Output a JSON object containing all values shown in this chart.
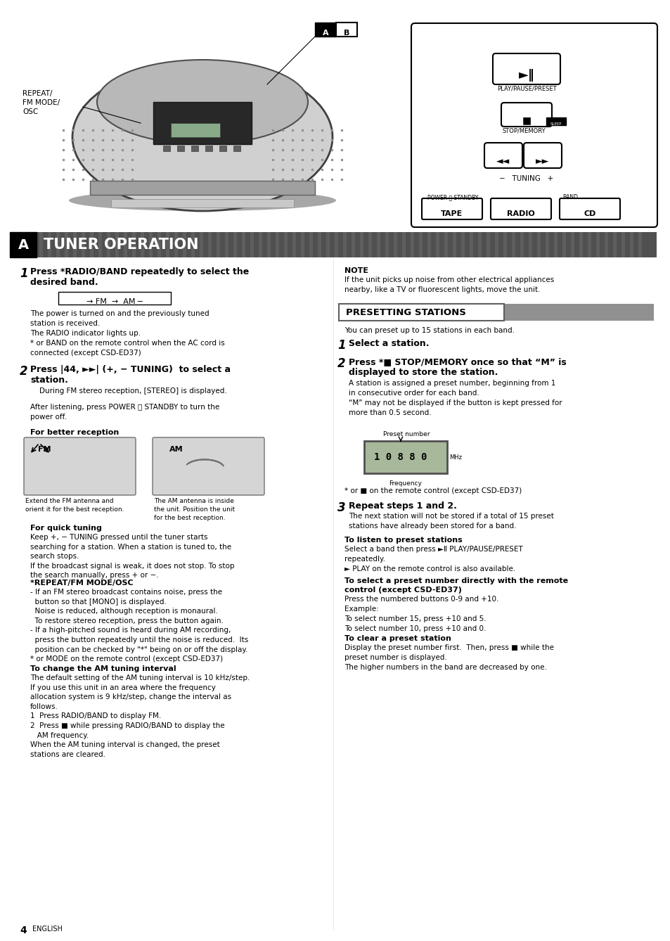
{
  "bg_color": "#ffffff",
  "page_width": 9.54,
  "page_height": 13.38,
  "dpi": 100,
  "step1_body": "The power is turned on and the previously tuned\nstation is received.\nThe RADIO indicator lights up.\n* or BAND on the remote control when the AC cord is\nconnected (except CSD-ED37)",
  "quick_tuning_body": "Keep +, − TUNING pressed until the tuner starts\nsearching for a station. When a station is tuned to, the\nsearch stops.\nIf the broadcast signal is weak, it does not stop. To stop\nthe search manually, press + or −.",
  "repeat_body1": "- If an FM stereo broadcast contains noise, press the\n  button so that [MONO] is displayed.\n  Noise is reduced, although reception is monaural.\n  To restore stereo reception, press the button again.\n- If a high-pitched sound is heard during AM recording,\n  press the button repeatedly until the noise is reduced.  Its\n  position can be checked by \"*\" being on or off the display.\n* or MODE on the remote control (except CSD-ED37)",
  "am_tuning_body": "The default setting of the AM tuning interval is 10 kHz/step.\nIf you use this unit in an area where the frequency\nallocation system is 9 kHz/step, change the interval as\nfollows.\n1  Press RADIO/BAND to display FM.\n2  Press ■ while pressing RADIO/BAND to display the\n   AM frequency.\nWhen the AM tuning interval is changed, the preset\nstations are cleared.",
  "note_body": "If the unit picks up noise from other electrical appliances\nnearby, like a TV or fluorescent lights, move the unit.",
  "presetting_intro": "You can preset up to 15 stations in each band.",
  "pstep2_body": "A station is assigned a preset number, beginning from 1\nin consecutive order for each band.\n“M” may not be displayed if the button is kept pressed for\nmore than 0.5 second.",
  "pstep3_body": "The next station will not be stored if a total of 15 preset\nstations have already been stored for a band.",
  "listen_preset_body": "Select a band then press ►Ⅱ PLAY/PAUSE/PRESET\nrepeatedly.\n► PLAY on the remote control is also available.",
  "select_preset_body": "Press the numbered buttons 0-9 and +10.\nExample:\nTo select number 15, press +10 and 5.\nTo select number 10, press +10 and 0.",
  "clear_preset_body": "Display the preset number first.  Then, press ■ while the\npreset number is displayed.\nThe higher numbers in the band are decreased by one.",
  "fm_caption": "Extend the FM antenna and\norient it for the best reception.",
  "am_caption": "The AM antenna is inside\nthe unit. Position the unit\nfor the best reception."
}
